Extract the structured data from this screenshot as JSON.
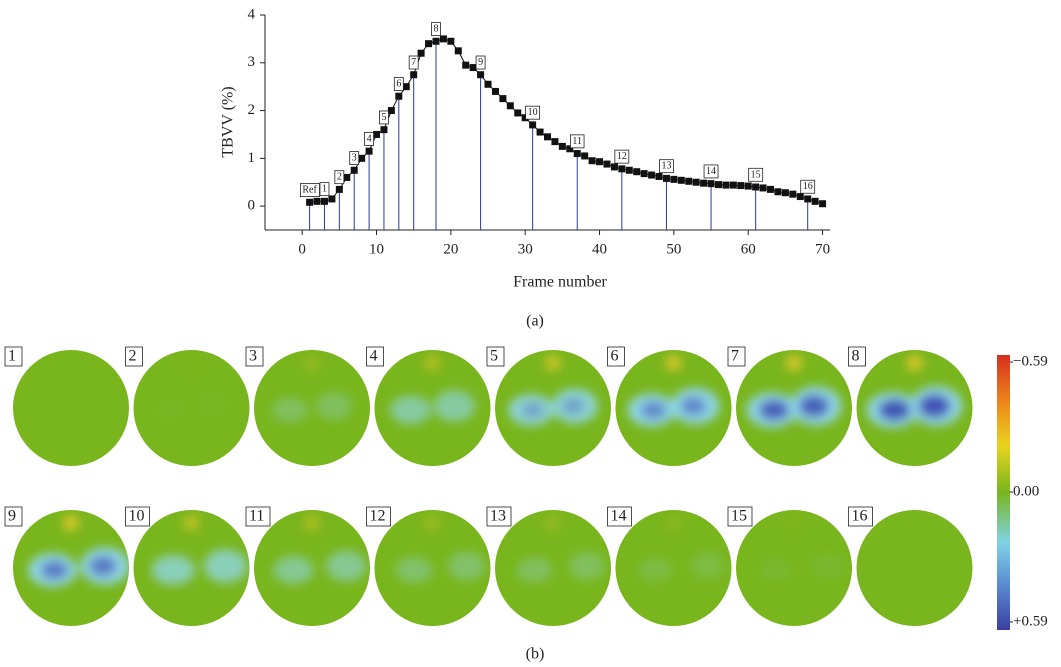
{
  "chart_data": {
    "type": "line",
    "y_label": "TBVV (%)",
    "x_label": "Frame number",
    "x": [
      1,
      2,
      3,
      4,
      5,
      6,
      7,
      8,
      9,
      10,
      11,
      12,
      13,
      14,
      15,
      16,
      17,
      18,
      19,
      20,
      21,
      22,
      23,
      24,
      25,
      26,
      27,
      28,
      29,
      30,
      31,
      32,
      33,
      34,
      35,
      36,
      37,
      38,
      39,
      40,
      41,
      42,
      43,
      44,
      45,
      46,
      47,
      48,
      49,
      50,
      51,
      52,
      53,
      54,
      55,
      56,
      57,
      58,
      59,
      60,
      61,
      62,
      63,
      64,
      65,
      66,
      67,
      68,
      69,
      70
    ],
    "values": [
      0.08,
      0.1,
      0.1,
      0.15,
      0.35,
      0.6,
      0.75,
      1.0,
      1.15,
      1.5,
      1.6,
      2.0,
      2.3,
      2.5,
      2.75,
      3.2,
      3.4,
      3.45,
      3.5,
      3.45,
      3.25,
      2.95,
      2.9,
      2.75,
      2.55,
      2.4,
      2.25,
      2.1,
      1.95,
      1.85,
      1.7,
      1.55,
      1.45,
      1.35,
      1.25,
      1.2,
      1.1,
      1.05,
      0.95,
      0.93,
      0.88,
      0.82,
      0.78,
      0.75,
      0.72,
      0.68,
      0.65,
      0.62,
      0.58,
      0.56,
      0.54,
      0.52,
      0.5,
      0.48,
      0.47,
      0.45,
      0.44,
      0.44,
      0.43,
      0.42,
      0.4,
      0.38,
      0.35,
      0.3,
      0.28,
      0.25,
      0.2,
      0.15,
      0.1,
      0.05
    ],
    "color": "#111111",
    "marker_line_color": "#2a3a9c",
    "xlim": [
      -5,
      71
    ],
    "ylim": [
      -0.5,
      4
    ],
    "xticks": [
      0,
      10,
      20,
      30,
      40,
      50,
      60,
      70
    ],
    "yticks": [
      0,
      1,
      2,
      3,
      4
    ],
    "markers": [
      {
        "label": "Ref",
        "frame": 1
      },
      {
        "label": "1",
        "frame": 3
      },
      {
        "label": "2",
        "frame": 5
      },
      {
        "label": "3",
        "frame": 7
      },
      {
        "label": "4",
        "frame": 9
      },
      {
        "label": "5",
        "frame": 11
      },
      {
        "label": "6",
        "frame": 13
      },
      {
        "label": "7",
        "frame": 15
      },
      {
        "label": "8",
        "frame": 18
      },
      {
        "label": "9",
        "frame": 24
      },
      {
        "label": "10",
        "frame": 31
      },
      {
        "label": "11",
        "frame": 37
      },
      {
        "label": "12",
        "frame": 43
      },
      {
        "label": "13",
        "frame": 49
      },
      {
        "label": "14",
        "frame": 55
      },
      {
        "label": "15",
        "frame": 61
      },
      {
        "label": "16",
        "frame": 68
      }
    ]
  },
  "panel_labels": [
    "(a)",
    "(b)"
  ],
  "images": {
    "labels": [
      "1",
      "2",
      "3",
      "4",
      "5",
      "6",
      "7",
      "8",
      "9",
      "10",
      "11",
      "12",
      "13",
      "14",
      "15",
      "16"
    ],
    "colorbar": {
      "lim": [
        -0.59,
        0.59
      ],
      "ticks": [
        {
          "value": -0.59,
          "label": "−0.59"
        },
        {
          "value": 0,
          "label": "0.00"
        },
        {
          "value": 0.59,
          "label": "+0.59"
        }
      ]
    }
  }
}
